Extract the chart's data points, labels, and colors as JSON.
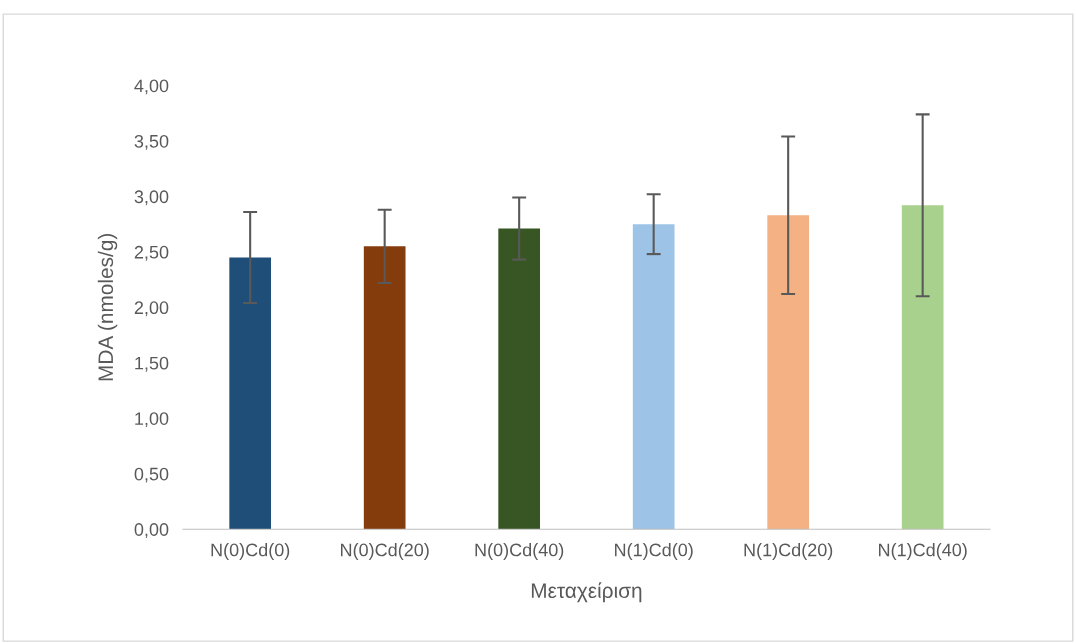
{
  "chart_data": {
    "type": "bar",
    "xlabel": "Μεταχείριση",
    "ylabel": "MDA (nmoles/g)",
    "categories": [
      "N(0)Cd(0)",
      "N(0)Cd(20)",
      "N(0)Cd(40)",
      "N(1)Cd(0)",
      "N(1)Cd(20)",
      "N(1)Cd(40)"
    ],
    "values": [
      2.45,
      2.55,
      2.71,
      2.75,
      2.83,
      2.92
    ],
    "errors": [
      0.41,
      0.33,
      0.28,
      0.27,
      0.71,
      0.82
    ],
    "colors": [
      "#1f4e79",
      "#843c0c",
      "#375623",
      "#9dc3e6",
      "#f4b183",
      "#a9d18e"
    ],
    "ylim": [
      0,
      4
    ],
    "yticks": [
      {
        "value": 0,
        "label": "0,00"
      },
      {
        "value": 0.5,
        "label": "0,50"
      },
      {
        "value": 1,
        "label": "1,00"
      },
      {
        "value": 1.5,
        "label": "1,50"
      },
      {
        "value": 2,
        "label": "2,00"
      },
      {
        "value": 2.5,
        "label": "2,50"
      },
      {
        "value": 3,
        "label": "3,00"
      },
      {
        "value": 3.5,
        "label": "3,50"
      },
      {
        "value": 4,
        "label": "4,00"
      }
    ],
    "grid": false,
    "legend": false
  }
}
